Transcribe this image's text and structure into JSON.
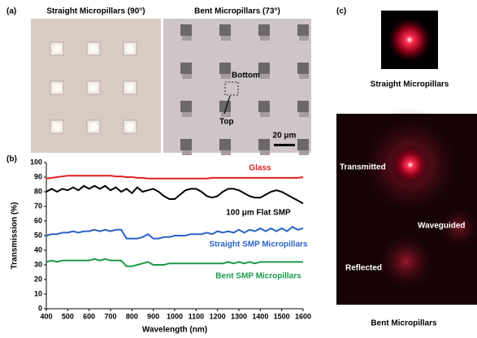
{
  "panel_a": {
    "label": "(a)",
    "left_title": "Straight Micropillars (90°)",
    "right_title": "Bent Micropillars (73°)",
    "bottom": "Bottom",
    "top": "Top",
    "scale": "20 μm"
  },
  "chart_data": {
    "type": "line",
    "label": "(b)",
    "x_label": "Wavelength (nm)",
    "y_label": "Transmission (%)",
    "xlim": [
      400,
      1600
    ],
    "xticks": [
      400,
      500,
      600,
      700,
      800,
      900,
      1000,
      1100,
      1200,
      1300,
      1400,
      1500,
      1600
    ],
    "ylim": [
      0,
      100
    ],
    "yticks": [
      0,
      10,
      20,
      30,
      40,
      50,
      60,
      70,
      80,
      90,
      100
    ],
    "grid": false,
    "x": [
      400,
      425,
      450,
      475,
      500,
      525,
      550,
      575,
      600,
      625,
      650,
      675,
      700,
      725,
      750,
      775,
      800,
      825,
      850,
      875,
      900,
      925,
      950,
      975,
      1000,
      1025,
      1050,
      1075,
      1100,
      1125,
      1150,
      1175,
      1200,
      1225,
      1250,
      1275,
      1300,
      1325,
      1350,
      1375,
      1400,
      1425,
      1450,
      1475,
      1500,
      1525,
      1550,
      1575,
      1600
    ],
    "series": [
      {
        "name": "Glass",
        "color": "#e02020",
        "values": [
          89,
          89.5,
          90,
          90.5,
          91,
          91,
          91,
          91,
          91,
          91,
          91,
          91,
          91,
          90.5,
          90.5,
          90,
          90,
          89.5,
          89.5,
          89,
          89,
          89,
          89,
          89,
          89,
          89,
          89,
          89,
          89,
          89,
          89,
          89.5,
          89.5,
          89.5,
          89.5,
          89.5,
          89.5,
          89.5,
          89.5,
          89.5,
          89.5,
          89.5,
          89.5,
          89.5,
          89.5,
          89.5,
          89.5,
          89.5,
          90
        ]
      },
      {
        "name": "100 μm Flat SMP",
        "color": "#000000",
        "values": [
          80,
          82,
          80,
          82,
          81,
          83,
          81,
          84,
          82,
          84,
          82,
          84,
          81,
          83,
          80,
          82,
          79,
          83,
          80,
          81,
          82,
          80,
          77,
          75,
          75,
          78,
          81,
          82,
          82,
          80,
          77,
          76,
          77,
          80,
          82,
          82,
          81,
          79,
          77,
          76,
          76,
          78,
          80,
          81,
          80,
          78,
          76,
          74,
          72
        ]
      },
      {
        "name": "Straight SMP Micropillars",
        "color": "#2a62c8",
        "values": [
          50,
          51,
          51,
          52,
          52,
          53,
          52,
          53,
          53,
          54,
          53,
          54,
          53,
          54,
          54,
          48,
          48,
          48,
          49,
          51,
          48,
          48,
          49,
          49,
          50,
          50,
          50,
          51,
          51,
          51,
          52,
          51,
          53,
          52,
          53,
          52,
          54,
          52,
          54,
          53,
          55,
          53,
          55,
          53,
          55,
          53,
          56,
          54,
          55
        ]
      },
      {
        "name": "Bent SMP Micropillars",
        "color": "#1a9a4a",
        "values": [
          32,
          33,
          32,
          33,
          33,
          33,
          33,
          33,
          33,
          34,
          33,
          34,
          33,
          33,
          33,
          29,
          29,
          30,
          31,
          32,
          30,
          30,
          30,
          31,
          31,
          31,
          31,
          31,
          31,
          31,
          31,
          31,
          31,
          31,
          32,
          31,
          32,
          31,
          32,
          31,
          32,
          32,
          32,
          32,
          32,
          32,
          32,
          32,
          32
        ]
      }
    ]
  },
  "panel_c": {
    "label": "(c)",
    "top_caption": "Straight Micropillars",
    "transmitted": "Transmitted",
    "waveguided": "Waveguided",
    "reflected": "Reflected",
    "bottom_caption": "Bent Micropillars"
  }
}
